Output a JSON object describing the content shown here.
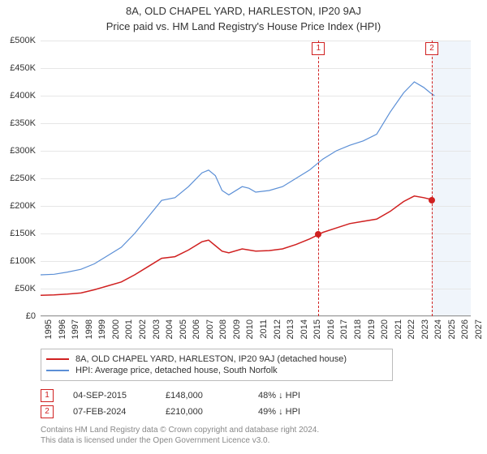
{
  "title": "8A, OLD CHAPEL YARD, HARLESTON, IP20 9AJ",
  "subtitle": "Price paid vs. HM Land Registry's House Price Index (HPI)",
  "chart": {
    "type": "line",
    "background_color": "#ffffff",
    "grid_color": "#e6e6e6",
    "future_band_color": "#f0f5fb",
    "xlim": [
      1995,
      2027
    ],
    "ylim": [
      0,
      500000
    ],
    "ytick_step": 50000,
    "yticks_labels": [
      "£0",
      "£50K",
      "£100K",
      "£150K",
      "£200K",
      "£250K",
      "£300K",
      "£350K",
      "£400K",
      "£450K",
      "£500K"
    ],
    "xticks": [
      1995,
      1996,
      1997,
      1998,
      1999,
      2000,
      2001,
      2002,
      2003,
      2004,
      2005,
      2006,
      2007,
      2008,
      2009,
      2010,
      2011,
      2012,
      2013,
      2014,
      2015,
      2016,
      2017,
      2018,
      2019,
      2020,
      2021,
      2022,
      2023,
      2024,
      2025,
      2026,
      2027
    ],
    "future_start": 2024.1,
    "axis_fontsize": 11,
    "series": {
      "price_paid": {
        "label": "8A, OLD CHAPEL YARD, HARLESTON, IP20 9AJ (detached house)",
        "color": "#d02020",
        "line_width": 1.5,
        "points": [
          [
            1995,
            38000
          ],
          [
            1996,
            38500
          ],
          [
            1997,
            40000
          ],
          [
            1998,
            42000
          ],
          [
            1999,
            48000
          ],
          [
            2000,
            55000
          ],
          [
            2001,
            62000
          ],
          [
            2002,
            75000
          ],
          [
            2003,
            90000
          ],
          [
            2004,
            105000
          ],
          [
            2005,
            108000
          ],
          [
            2006,
            120000
          ],
          [
            2007,
            135000
          ],
          [
            2007.5,
            138000
          ],
          [
            2008,
            128000
          ],
          [
            2008.5,
            118000
          ],
          [
            2009,
            115000
          ],
          [
            2010,
            122000
          ],
          [
            2010.5,
            120000
          ],
          [
            2011,
            118000
          ],
          [
            2012,
            119000
          ],
          [
            2013,
            122000
          ],
          [
            2014,
            130000
          ],
          [
            2015,
            140000
          ],
          [
            2015.67,
            148000
          ],
          [
            2016,
            152000
          ],
          [
            2017,
            160000
          ],
          [
            2018,
            168000
          ],
          [
            2019,
            172000
          ],
          [
            2020,
            176000
          ],
          [
            2021,
            190000
          ],
          [
            2022,
            208000
          ],
          [
            2022.8,
            218000
          ],
          [
            2023.5,
            215000
          ],
          [
            2024,
            212000
          ],
          [
            2024.1,
            210000
          ]
        ]
      },
      "hpi": {
        "label": "HPI: Average price, detached house, South Norfolk",
        "color": "#5b8fd6",
        "line_width": 1.2,
        "points": [
          [
            1995,
            75000
          ],
          [
            1996,
            76000
          ],
          [
            1997,
            80000
          ],
          [
            1998,
            85000
          ],
          [
            1999,
            95000
          ],
          [
            2000,
            110000
          ],
          [
            2001,
            125000
          ],
          [
            2002,
            150000
          ],
          [
            2003,
            180000
          ],
          [
            2004,
            210000
          ],
          [
            2005,
            215000
          ],
          [
            2006,
            235000
          ],
          [
            2007,
            260000
          ],
          [
            2007.5,
            265000
          ],
          [
            2008,
            255000
          ],
          [
            2008.5,
            228000
          ],
          [
            2009,
            220000
          ],
          [
            2010,
            235000
          ],
          [
            2010.5,
            232000
          ],
          [
            2011,
            225000
          ],
          [
            2012,
            228000
          ],
          [
            2013,
            235000
          ],
          [
            2014,
            250000
          ],
          [
            2015,
            265000
          ],
          [
            2016,
            285000
          ],
          [
            2017,
            300000
          ],
          [
            2018,
            310000
          ],
          [
            2019,
            318000
          ],
          [
            2020,
            330000
          ],
          [
            2021,
            370000
          ],
          [
            2022,
            405000
          ],
          [
            2022.8,
            425000
          ],
          [
            2023.5,
            415000
          ],
          [
            2024,
            405000
          ],
          [
            2024.3,
            400000
          ]
        ]
      }
    },
    "events": [
      {
        "n": "1",
        "x": 2015.67,
        "price": 148000,
        "date": "04-SEP-2015",
        "price_label": "£148,000",
        "delta": "48% ↓ HPI"
      },
      {
        "n": "2",
        "x": 2024.1,
        "price": 210000,
        "date": "07-FEB-2024",
        "price_label": "£210,000",
        "delta": "49% ↓ HPI"
      }
    ]
  },
  "legend_border": "#bbbbbb",
  "footer1": "Contains HM Land Registry data © Crown copyright and database right 2024.",
  "footer2": "This data is licensed under the Open Government Licence v3.0."
}
